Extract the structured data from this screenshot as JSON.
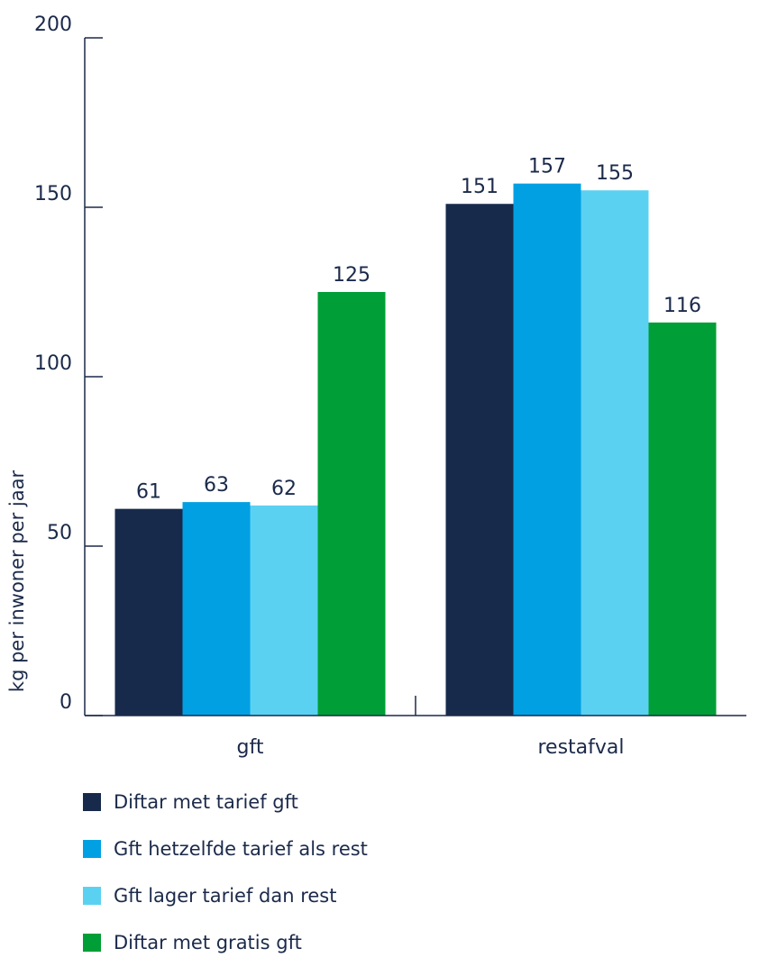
{
  "chart_data": {
    "type": "bar",
    "categories": [
      "gft",
      "restafval"
    ],
    "series": [
      {
        "name": "Diftar met tarief gft",
        "color": "#172a4c",
        "values": [
          61,
          151
        ]
      },
      {
        "name": "Gft hetzelfde tarief als rest",
        "color": "#00a0e3",
        "values": [
          63,
          157
        ]
      },
      {
        "name": "Gft lager tarief dan rest",
        "color": "#5bd1f2",
        "values": [
          62,
          155
        ]
      },
      {
        "name": "Diftar met gratis gft",
        "color": "#009e36",
        "values": [
          125,
          116
        ]
      }
    ],
    "ylabel": "kg per inwoner per jaar",
    "ylim": [
      0,
      200
    ],
    "yticks": [
      0,
      50,
      100,
      150,
      200
    ],
    "grid": false,
    "legend_position": "bottom-left"
  }
}
